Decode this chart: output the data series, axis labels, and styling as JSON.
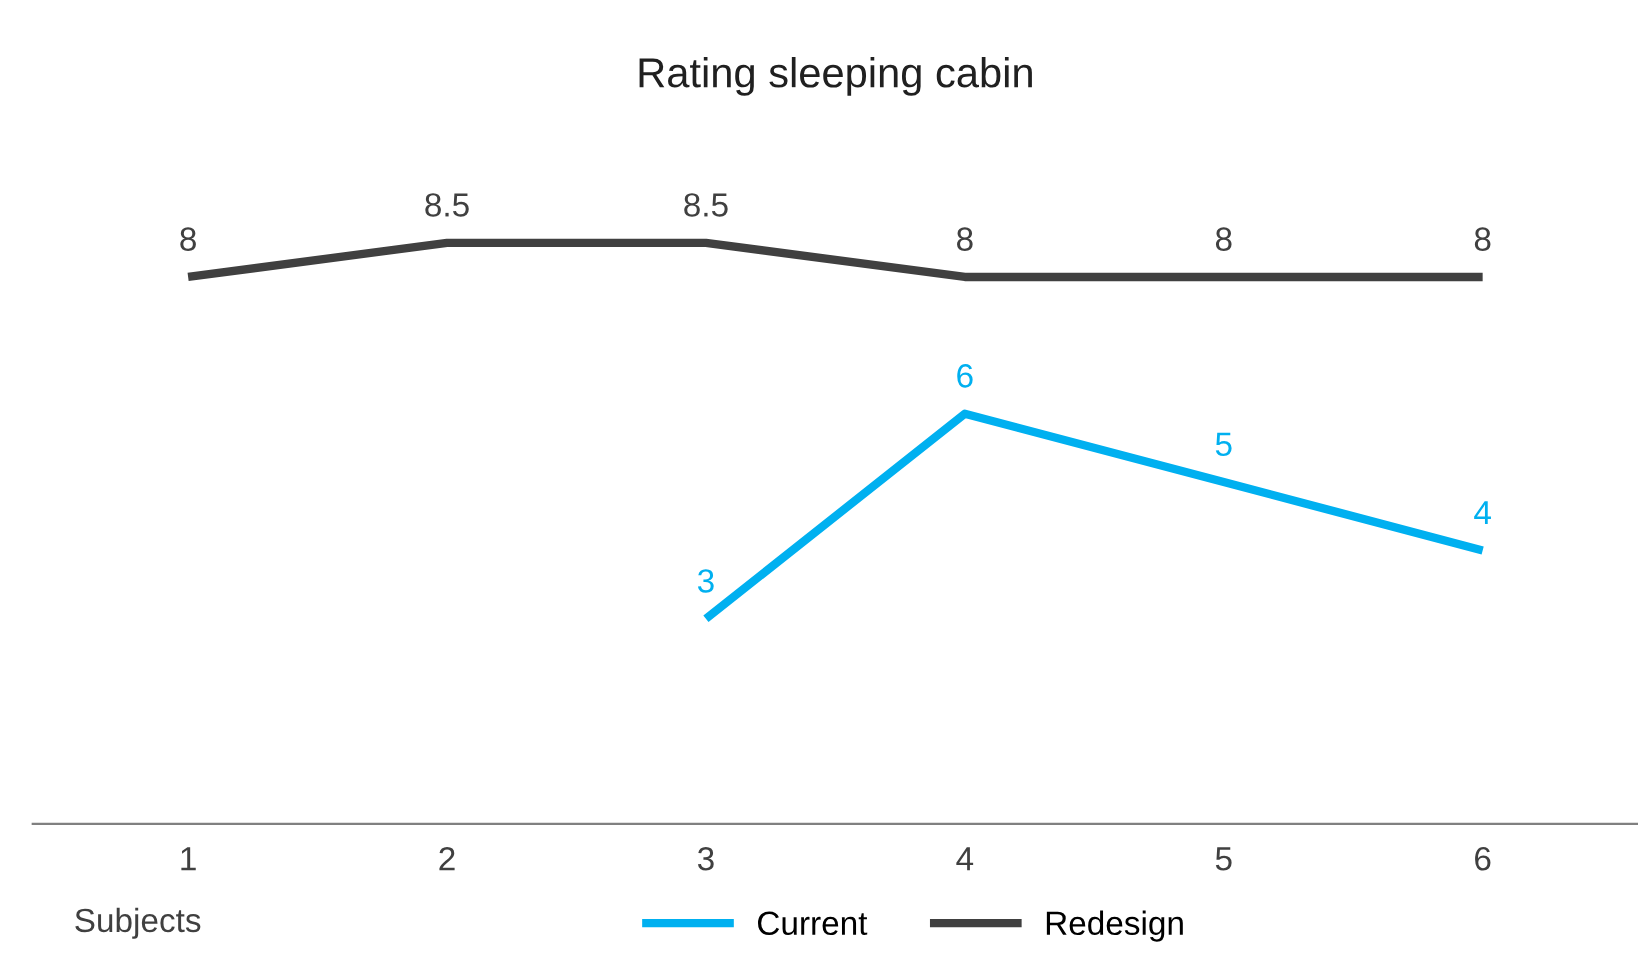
{
  "chart_data": {
    "type": "line",
    "title": "Rating sleeping cabin",
    "xlabel": "Subjects",
    "categories": [
      "1",
      "2",
      "3",
      "4",
      "5",
      "6"
    ],
    "series": [
      {
        "name": "Current",
        "color": "#00b0f0",
        "values": [
          null,
          null,
          3,
          6,
          5,
          4
        ]
      },
      {
        "name": "Redesign",
        "color": "#404040",
        "values": [
          8,
          8.5,
          8.5,
          8,
          8,
          8
        ]
      }
    ],
    "data_labels": true,
    "legend": "bottom",
    "grid": false,
    "line_style": "solid"
  }
}
